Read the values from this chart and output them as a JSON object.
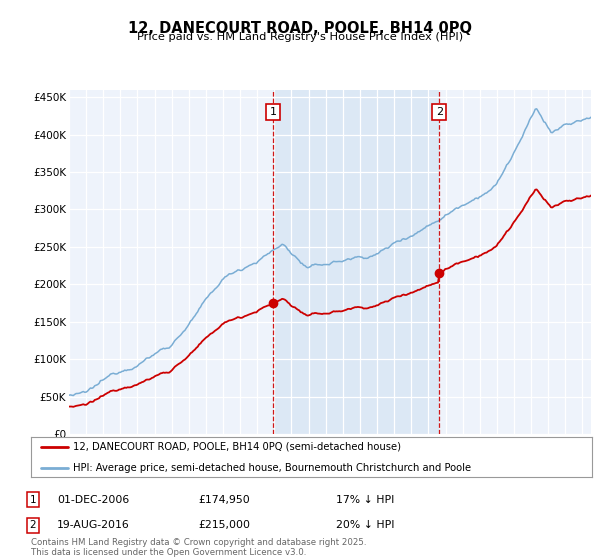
{
  "title": "12, DANECOURT ROAD, POOLE, BH14 0PQ",
  "subtitle": "Price paid vs. HM Land Registry's House Price Index (HPI)",
  "ylim": [
    0,
    460000
  ],
  "yticks": [
    0,
    50000,
    100000,
    150000,
    200000,
    250000,
    300000,
    350000,
    400000,
    450000
  ],
  "ytick_labels": [
    "£0",
    "£50K",
    "£100K",
    "£150K",
    "£200K",
    "£250K",
    "£300K",
    "£350K",
    "£400K",
    "£450K"
  ],
  "xlim_start": 1995.0,
  "xlim_end": 2025.5,
  "hpi_color": "#7aadd4",
  "price_color": "#cc0000",
  "vline_color": "#cc0000",
  "shade_color": "#dce8f5",
  "sale1_x": 2006.917,
  "sale1_y": 174950,
  "sale1_label": "1",
  "sale2_x": 2016.635,
  "sale2_y": 215000,
  "sale2_label": "2",
  "legend_line1": "12, DANECOURT ROAD, POOLE, BH14 0PQ (semi-detached house)",
  "legend_line2": "HPI: Average price, semi-detached house, Bournemouth Christchurch and Poole",
  "annotation1_date": "01-DEC-2006",
  "annotation1_price": "£174,950",
  "annotation1_hpi": "17% ↓ HPI",
  "annotation2_date": "19-AUG-2016",
  "annotation2_price": "£215,000",
  "annotation2_hpi": "20% ↓ HPI",
  "footer": "Contains HM Land Registry data © Crown copyright and database right 2025.\nThis data is licensed under the Open Government Licence v3.0.",
  "background_color": "#ffffff",
  "plot_bg_color": "#eef3fb"
}
